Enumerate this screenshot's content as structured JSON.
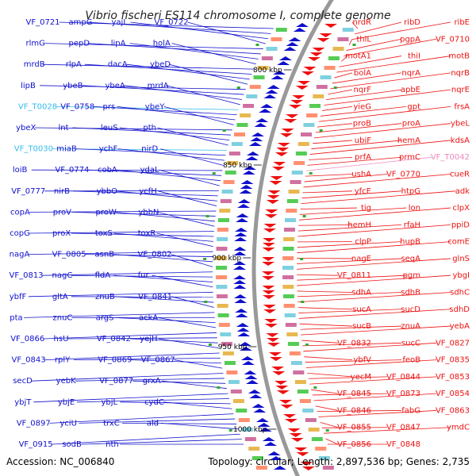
{
  "title": "Vibrio fischeri ES114 chromosome I, complete genome",
  "footer": {
    "accession": "Accession: NC_006840",
    "topology": "Topology: circular; Length: 2,897,536 bp; Genes: 2,735"
  },
  "colors": {
    "minus_strand": "#1010cc",
    "plus_strand": "#ee1111",
    "rna_minus": "#33bbee",
    "rna_plus": "#ee88bb",
    "backbone": "#999999"
  },
  "ticks": [
    "800 kbp",
    "850 kbp",
    "900 kbp",
    "950 kbp",
    "1000 kbp"
  ],
  "left_labels": [
    "VF_0721",
    "ampG",
    "yajL",
    "VF_0722",
    "rlmG",
    "pepD",
    "lipA",
    "holA",
    "mrdB",
    "rlpA",
    "dacA",
    "ybeD",
    "lipB",
    "ybeB",
    "ybeA",
    "mrdA",
    "VF_T0028",
    "VF_0758",
    "prs",
    "ybeY",
    "ybeX",
    "lnt",
    "leuS",
    "pth",
    "VF_T0030",
    "miaB",
    "ychF",
    "nirD",
    "loiB",
    "VF_0774",
    "cobA",
    "ydaL",
    "VF_0777",
    "nirB",
    "ybbO",
    "ycfH",
    "copA",
    "proV",
    "proW",
    "ybbN",
    "copG",
    "proX",
    "toxS",
    "toxR",
    "nagA",
    "VF_0805",
    "asnB",
    "VF_0802",
    "VF_0813",
    "nagC",
    "fldA",
    "fur",
    "ybfF",
    "gltA",
    "znuB",
    "VF_0841",
    "pta",
    "znuC",
    "argS",
    "ackA",
    "VF_0866",
    "hsU",
    "VF_0842",
    "yejH",
    "VF_0843",
    "rplY",
    "VF_0869",
    "VF_0867",
    "secD",
    "yebK",
    "VF_0877",
    "grxA",
    "ybjT",
    "ybjE",
    "ybjL",
    "cydC",
    "VF_0897",
    "yciU",
    "trxC",
    "ald",
    "VF_0915",
    "sodB",
    "nth"
  ],
  "right_labels": [
    "nrdR",
    "ribD",
    "ribE",
    "thiL",
    "pgpA",
    "VF_0710",
    "motA1",
    "thiI",
    "motB",
    "bolA",
    "nqrA",
    "nqrB",
    "nqrF",
    "apbE",
    "nqrE",
    "yieG",
    "gpt",
    "frsA",
    "proB",
    "proA",
    "ybeL",
    "ubiF",
    "hemA",
    "kdsA",
    "prfA",
    "prmC",
    "VF_T0042",
    "ushA",
    "VF_0770",
    "cueR",
    "yfcE",
    "htpG",
    "adk",
    "tig",
    "lon",
    "clpX",
    "hemH",
    "rfaH",
    "ppiD",
    "clpP",
    "hupB",
    "comE",
    "nagE",
    "seqA",
    "glnS",
    "VF_0811",
    "pgm",
    "ybgI",
    "sdhA",
    "sdhB",
    "sdhC",
    "sucA",
    "sucD",
    "sdhD",
    "sucB",
    "znuA",
    "yebA",
    "VF_0832",
    "sucC",
    "VF_0827",
    "ybfV",
    "feoB",
    "VF_0835",
    "yecM",
    "VF_0844",
    "VF_0853",
    "VF_0845",
    "VF_0873",
    "VF_0854",
    "VF_0846",
    "fabG",
    "VF_0863",
    "VF_0855",
    "VF_0847",
    "ymdC",
    "VF_0856",
    "VF_0848"
  ]
}
